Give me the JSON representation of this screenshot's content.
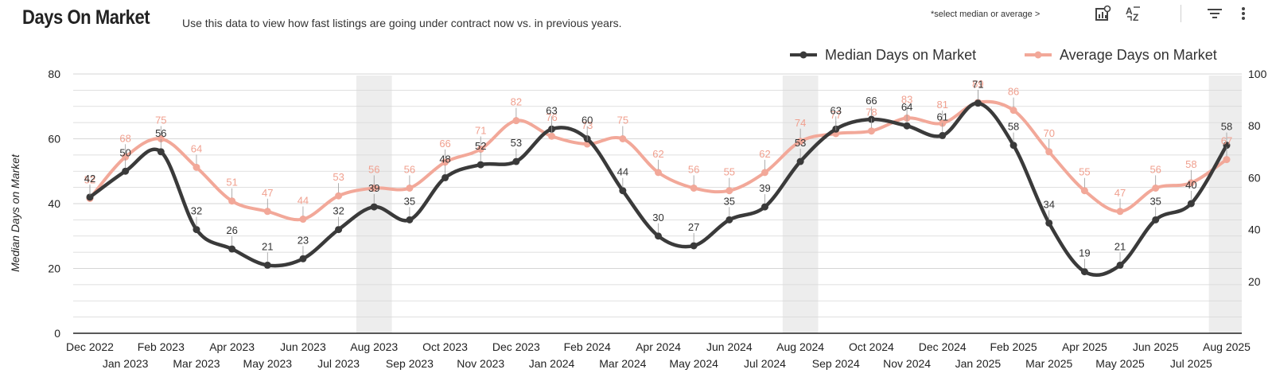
{
  "header": {
    "title": "Days On Market",
    "subtitle": "Use this data to view how fast listings are going under contract now vs. in previous years.",
    "hint": "*select median or average >"
  },
  "toolbar": {
    "chart_settings_icon": "chart-settings-icon",
    "sort_icon": "sort-az-icon",
    "filter_icon": "filter-icon",
    "more_icon": "more-vert-icon"
  },
  "colors": {
    "median": "#3a3a3a",
    "average": "#f2a899",
    "average_label": "#f0a08f",
    "grid": "#d6d6d6",
    "highlight": "#ededed"
  },
  "chart_data": {
    "type": "line",
    "title": "Days On Market",
    "ylabel": "Median Days on Market",
    "xlabel": "",
    "ylim": [
      0,
      80
    ],
    "y2lim": [
      0,
      100
    ],
    "y_ticks": [
      0,
      20,
      40,
      60,
      80
    ],
    "y2_ticks": [
      20,
      40,
      60,
      80,
      100
    ],
    "legend_position": "top-right",
    "categories": [
      "Dec 2022",
      "Jan 2023",
      "Feb 2023",
      "Mar 2023",
      "Apr 2023",
      "May 2023",
      "Jun 2023",
      "Jul 2023",
      "Aug 2023",
      "Sep 2023",
      "Oct 2023",
      "Nov 2023",
      "Dec 2023",
      "Jan 2024",
      "Feb 2024",
      "Mar 2024",
      "Apr 2024",
      "May 2024",
      "Jun 2024",
      "Jul 2024",
      "Aug 2024",
      "Sep 2024",
      "Oct 2024",
      "Nov 2024",
      "Dec 2024",
      "Jan 2025",
      "Feb 2025",
      "Mar 2025",
      "Apr 2025",
      "May 2025",
      "Jun 2025",
      "Jul 2025",
      "Aug 2025"
    ],
    "highlighted_months": [
      "Aug 2023",
      "Aug 2024",
      "Aug 2025"
    ],
    "series": [
      {
        "name": "Median Days on Market",
        "axis": "left",
        "values": [
          42,
          50,
          56,
          32,
          26,
          21,
          23,
          32,
          39,
          35,
          48,
          52,
          53,
          63,
          60,
          44,
          30,
          27,
          35,
          39,
          53,
          63,
          66,
          64,
          61,
          71,
          58,
          34,
          19,
          21,
          35,
          40,
          58
        ]
      },
      {
        "name": "Average Days on Market",
        "axis": "right",
        "values": [
          52,
          68,
          75,
          64,
          51,
          47,
          44,
          53,
          56,
          56,
          66,
          71,
          82,
          76,
          73,
          75,
          62,
          56,
          55,
          62,
          74,
          77,
          78,
          83,
          81,
          89,
          86,
          70,
          55,
          47,
          56,
          58,
          67
        ]
      }
    ]
  }
}
